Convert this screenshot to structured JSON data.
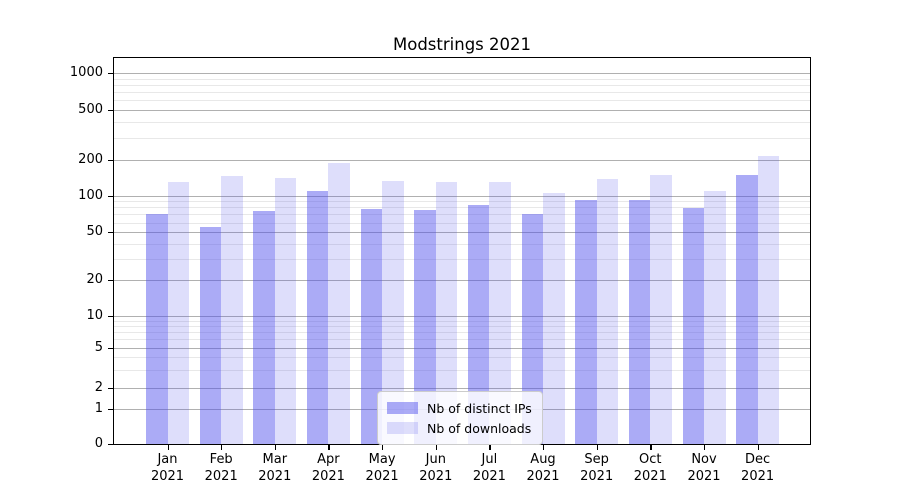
{
  "title": "Modstrings 2021",
  "chart_data": {
    "type": "bar",
    "title": "Modstrings 2021",
    "categories": [
      "Jan 2021",
      "Feb 2021",
      "Mar 2021",
      "Apr 2021",
      "May 2021",
      "Jun 2021",
      "Jul 2021",
      "Aug 2021",
      "Sep 2021",
      "Oct 2021",
      "Nov 2021",
      "Dec 2021"
    ],
    "series": [
      {
        "name": "Nb of distinct IPs",
        "color": "#a6a6f0",
        "values": [
          70,
          55,
          75,
          110,
          78,
          76,
          84,
          70,
          93,
          93,
          79,
          150
        ]
      },
      {
        "name": "Nb of downloads",
        "color": "#dcdcf8",
        "values": [
          130,
          145,
          140,
          188,
          133,
          131,
          130,
          105,
          137,
          150,
          110,
          215
        ]
      }
    ],
    "xlabel": "",
    "ylabel": "",
    "yscale": "symlog",
    "yticks": [
      0,
      1,
      2,
      5,
      10,
      20,
      50,
      100,
      200,
      500,
      1000
    ],
    "ylim": [
      0,
      1000
    ],
    "grid": "horizontal major and minor",
    "legend_position": "lower center inside plot",
    "legend": [
      "Nb of distinct IPs",
      "Nb of downloads"
    ]
  }
}
